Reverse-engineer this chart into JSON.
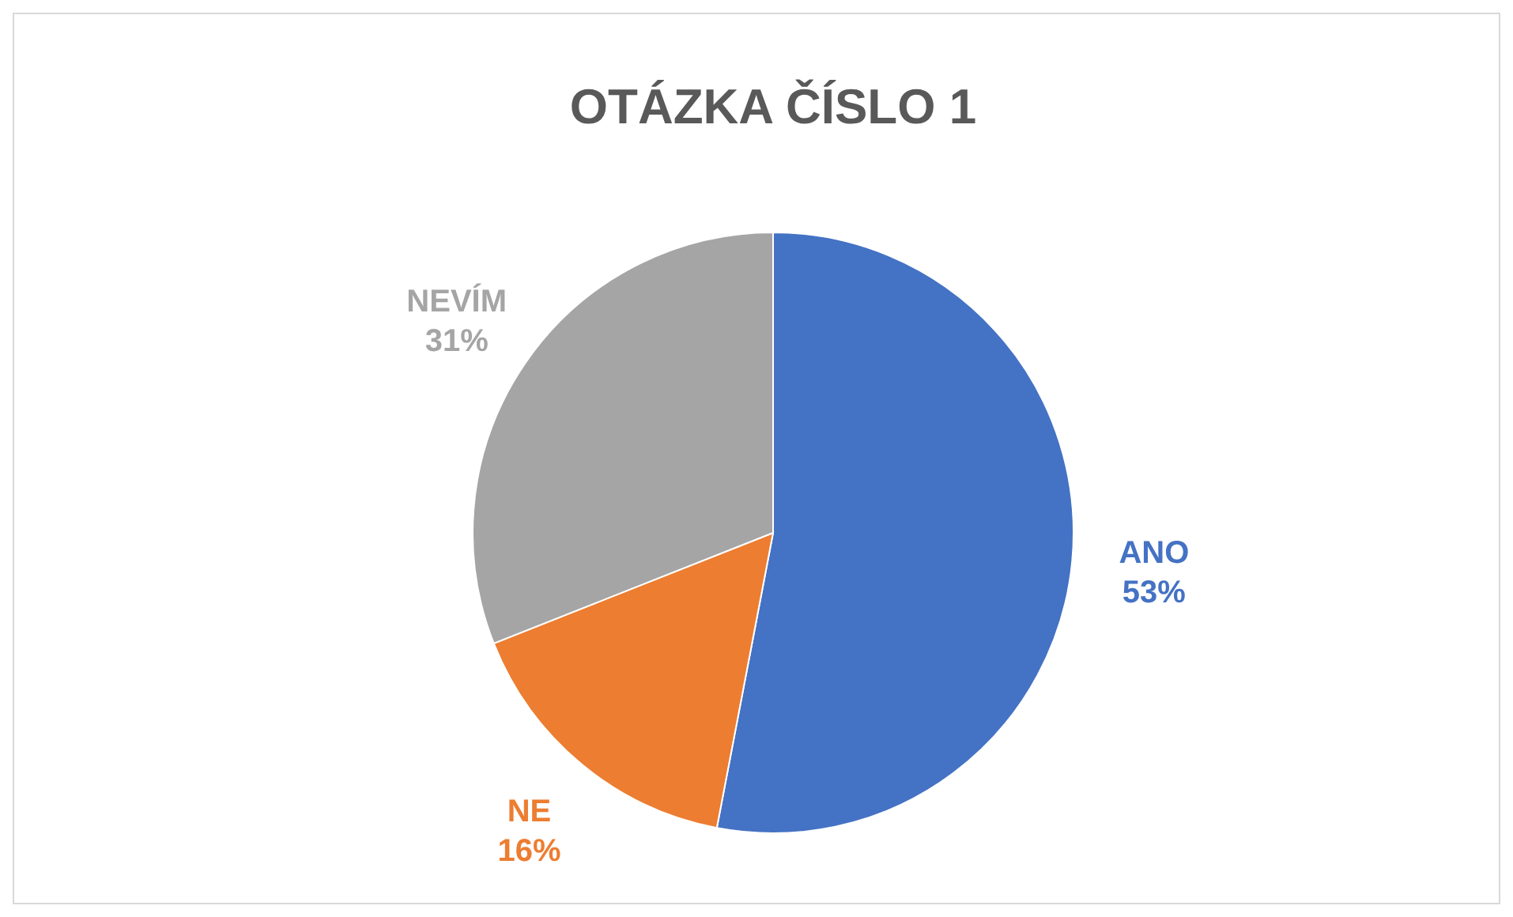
{
  "chart_data": {
    "type": "pie",
    "title": "OTÁZKA ČÍSLO 1",
    "categories": [
      "ANO",
      "NE",
      "NEVÍM"
    ],
    "values": [
      53,
      16,
      31
    ],
    "value_labels": [
      "53%",
      "16%",
      "31%"
    ],
    "colors": [
      "#4472c4",
      "#ed7d31",
      "#a5a5a5"
    ]
  }
}
